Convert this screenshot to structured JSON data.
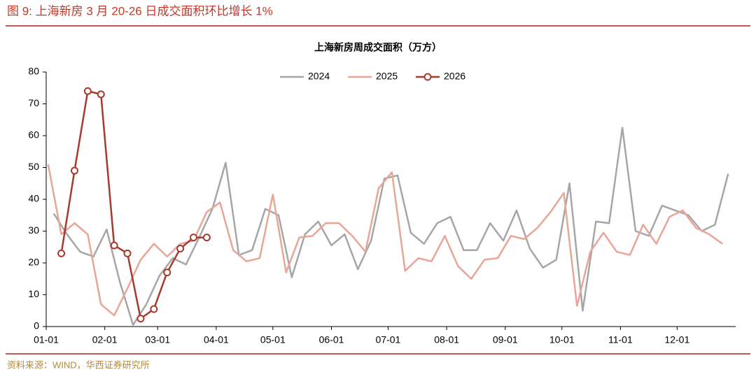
{
  "header": {
    "title": "图 9:  上海新房 3 月 20-26 日成交面积环比增长 1%"
  },
  "source": "资料来源：WIND，华西证券研究所",
  "chart_data": {
    "type": "line",
    "title": "上海新房周成交面积（万方）",
    "xlim": [
      0,
      365
    ],
    "xticks": [
      {
        "value": 0,
        "label": "01-01"
      },
      {
        "value": 31,
        "label": "02-01"
      },
      {
        "value": 59,
        "label": "03-01"
      },
      {
        "value": 90,
        "label": "04-01"
      },
      {
        "value": 120,
        "label": "05-01"
      },
      {
        "value": 151,
        "label": "06-01"
      },
      {
        "value": 181,
        "label": "07-01"
      },
      {
        "value": 212,
        "label": "08-01"
      },
      {
        "value": 243,
        "label": "09-01"
      },
      {
        "value": 273,
        "label": "10-01"
      },
      {
        "value": 304,
        "label": "11-01"
      },
      {
        "value": 334,
        "label": "12-01"
      }
    ],
    "ylim": [
      0,
      80
    ],
    "yticks": [
      0,
      10,
      20,
      30,
      40,
      50,
      60,
      70,
      80
    ],
    "legend": "top",
    "series": [
      {
        "name": "2024",
        "color": "#a6a6a6",
        "markers": false,
        "x": [
          4,
          11,
          18,
          25,
          32,
          39,
          46,
          53,
          60,
          67,
          74,
          81,
          88,
          95,
          102,
          109,
          116,
          123,
          130,
          137,
          144,
          151,
          158,
          165,
          172,
          179,
          186,
          193,
          200,
          207,
          214,
          221,
          228,
          235,
          242,
          249,
          256,
          263,
          270,
          277,
          284,
          291,
          298,
          305,
          312,
          319,
          326,
          333,
          340,
          347,
          354,
          361
        ],
        "values": [
          35.5,
          29,
          23.5,
          22,
          30.5,
          14,
          0.5,
          7,
          16,
          21.5,
          19.5,
          28,
          37,
          51.5,
          22.5,
          24,
          37,
          35,
          15.5,
          29,
          33,
          25.5,
          29,
          18,
          27,
          46.5,
          47.5,
          29.5,
          26,
          32.5,
          34.5,
          24,
          24,
          32.5,
          27,
          36.5,
          24.5,
          18.5,
          21,
          45,
          5,
          33,
          32.5,
          62.5,
          30,
          28.5,
          38,
          36.5,
          35,
          30,
          32,
          48
        ]
      },
      {
        "name": "2025",
        "color": "#e8a598",
        "markers": false,
        "x": [
          1,
          8,
          15,
          22,
          29,
          36,
          43,
          50,
          57,
          64,
          71,
          78,
          85,
          92,
          99,
          106,
          113,
          120,
          127,
          134,
          141,
          148,
          155,
          162,
          169,
          176,
          183,
          190,
          197,
          204,
          211,
          218,
          225,
          232,
          239,
          246,
          253,
          260,
          267,
          274,
          281,
          288,
          295,
          302,
          309,
          316,
          323,
          330,
          337,
          344,
          351,
          358
        ],
        "values": [
          51,
          29,
          32.5,
          29,
          7,
          3.5,
          12,
          21,
          26,
          22,
          26,
          27,
          36,
          39,
          24,
          20.5,
          21.5,
          41.5,
          17,
          28,
          28.5,
          32.5,
          32.5,
          28.5,
          23.5,
          43.5,
          48.5,
          17.5,
          21.5,
          20.5,
          28.5,
          19,
          15,
          21,
          21.5,
          28.5,
          27.5,
          31,
          36,
          42,
          6.5,
          23.5,
          29.5,
          23.5,
          22.5,
          32,
          26,
          34.5,
          36.5,
          31,
          29,
          26
        ]
      },
      {
        "name": "2026",
        "color": "#a53a2e",
        "markers": true,
        "x": [
          8,
          15,
          22,
          29,
          36,
          43,
          50,
          57,
          64,
          71,
          78,
          85
        ],
        "values": [
          23,
          49,
          74,
          73,
          25.5,
          23,
          2.5,
          5.5,
          17,
          24.5,
          28,
          28
        ]
      }
    ]
  }
}
